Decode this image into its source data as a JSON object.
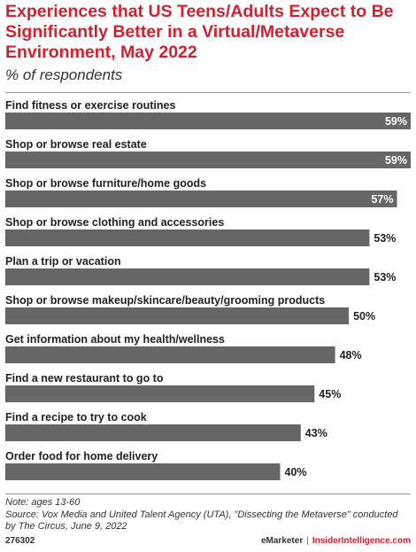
{
  "chart_data": {
    "type": "bar",
    "orientation": "horizontal",
    "title": "Experiences that US Teens/Adults Expect to Be Significantly Better in a Virtual/Metaverse Environment, May 2022",
    "subtitle": "% of respondents",
    "categories": [
      "Find fitness or exercise routines",
      "Shop or browse real estate",
      "Shop or browse furniture/home goods",
      "Shop or browse clothing and accessories",
      "Plan a trip or vacation",
      "Shop or browse makeup/skincare/beauty/grooming products",
      "Get information about my health/wellness",
      "Find a new restaurant to go to",
      "Find a recipe to try to cook",
      "Order food for home delivery"
    ],
    "values": [
      59,
      59,
      57,
      53,
      53,
      50,
      48,
      45,
      43,
      40
    ],
    "value_labels": [
      "59%",
      "59%",
      "57%",
      "53%",
      "53%",
      "50%",
      "48%",
      "45%",
      "43%",
      "40%"
    ],
    "xlim": [
      0,
      59
    ],
    "bar_color": "#666666",
    "grid": false,
    "legend": "none"
  },
  "footer": {
    "note": "Note: ages 13-60",
    "source_line1": "Source: Vox Media and United Talent Agency (UTA), \"Dissecting the Metaverse\" conducted",
    "source_line2": "by The Circus, June 9, 2022",
    "chart_id": "276302",
    "brand_left": "eMarketer",
    "brand_sep": "|",
    "brand_right": "InsiderIntelligence.com"
  },
  "colors": {
    "accent": "#d3202e",
    "bar": "#666666"
  }
}
